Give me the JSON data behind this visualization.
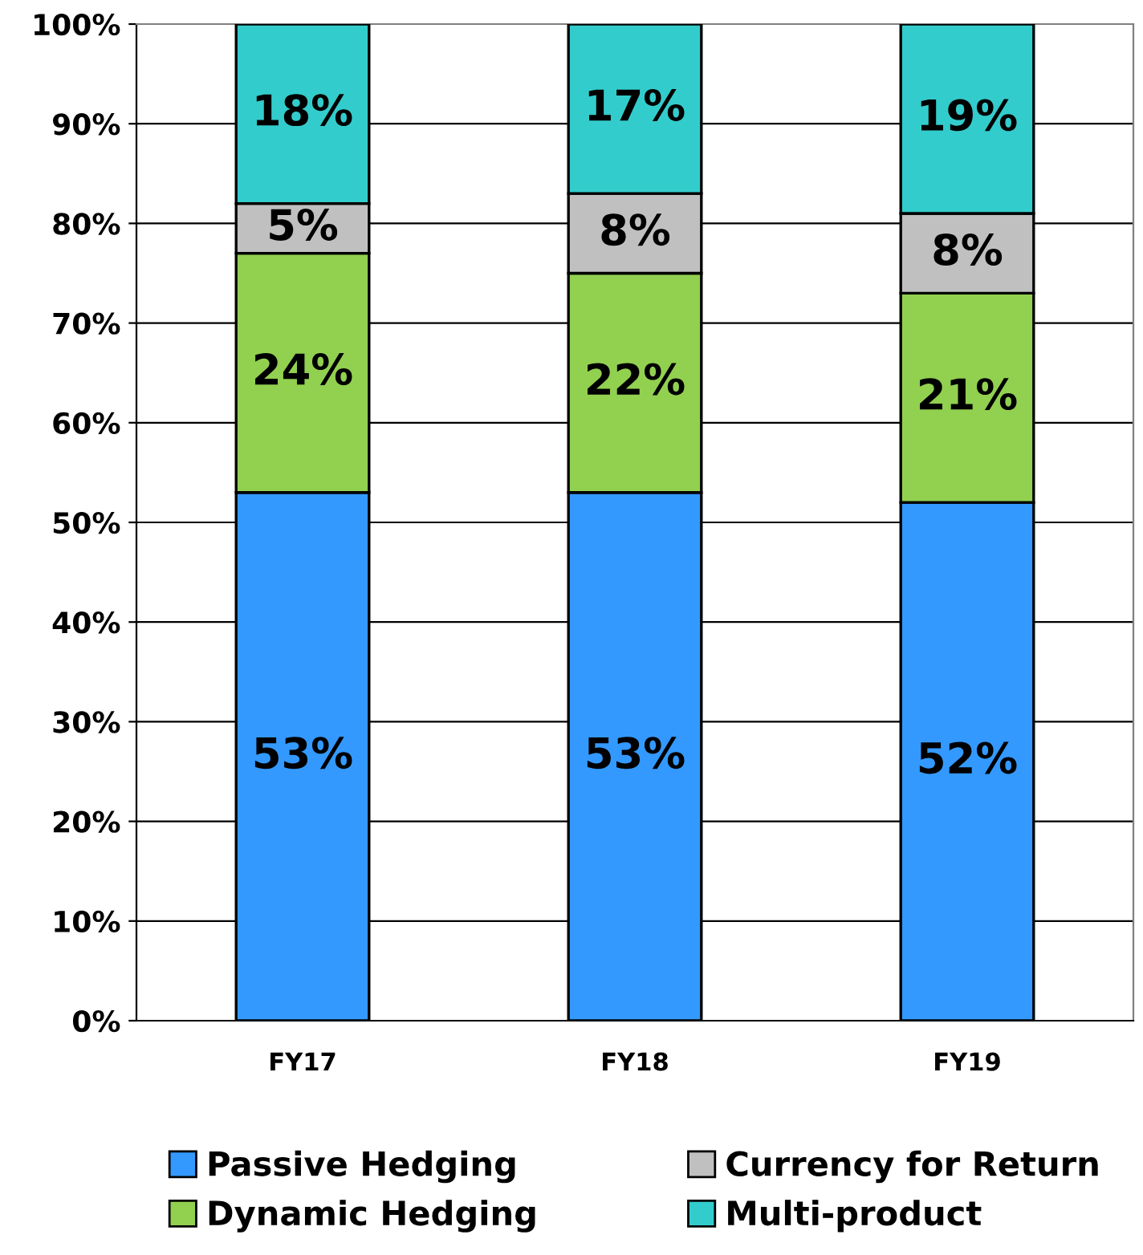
{
  "chart_data": {
    "type": "bar",
    "stacked": true,
    "categories": [
      "FY17",
      "FY18",
      "FY19"
    ],
    "series": [
      {
        "name": "Passive Hedging",
        "color": "#3399ff",
        "values": [
          53,
          53,
          52
        ],
        "value_labels": [
          "53%",
          "53%",
          "52%"
        ]
      },
      {
        "name": "Dynamic Hedging",
        "color": "#92d050",
        "values": [
          24,
          22,
          21
        ],
        "value_labels": [
          "24%",
          "22%",
          "21%"
        ]
      },
      {
        "name": "Currency for Return",
        "color": "#c0c0c0",
        "values": [
          5,
          8,
          8
        ],
        "value_labels": [
          "5%",
          "8%",
          "8%"
        ]
      },
      {
        "name": "Multi-product",
        "color": "#33cccc",
        "values": [
          18,
          17,
          19
        ],
        "value_labels": [
          "18%",
          "17%",
          "19%"
        ]
      }
    ],
    "ylim": [
      0,
      100
    ],
    "yticks": [
      {
        "value": 0,
        "label": "0%"
      },
      {
        "value": 10,
        "label": "10%"
      },
      {
        "value": 20,
        "label": "20%"
      },
      {
        "value": 30,
        "label": "30%"
      },
      {
        "value": 40,
        "label": "40%"
      },
      {
        "value": 50,
        "label": "50%"
      },
      {
        "value": 60,
        "label": "60%"
      },
      {
        "value": 70,
        "label": "70%"
      },
      {
        "value": 80,
        "label": "80%"
      },
      {
        "value": 90,
        "label": "90%"
      },
      {
        "value": 100,
        "label": "100%"
      }
    ],
    "grid": "y",
    "legend": "bottom"
  }
}
